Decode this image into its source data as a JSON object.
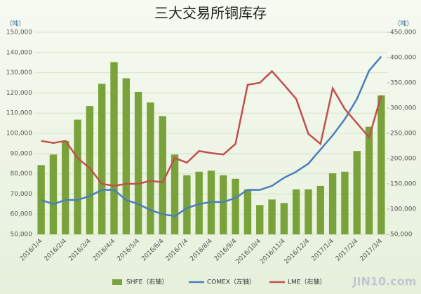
{
  "chart_data": {
    "type": "bar-line-dual",
    "title": "三大交易所铜库存",
    "y_unit": "（吨）",
    "y2_unit": "（吨）",
    "watermark": "JIN10.com",
    "categories": [
      "2016/1/4",
      null,
      "2016/2/4",
      null,
      "2016/3/4",
      null,
      "2016/4/4",
      null,
      "2016/5/4",
      null,
      "2016/6/4",
      null,
      "2016/7/4",
      null,
      "2016/8/4",
      null,
      "2016/9/4",
      null,
      "2016/10/4",
      null,
      "2016/11/4",
      null,
      "2016/12/4",
      null,
      "2017/1/4",
      null,
      "2017/2/4",
      null,
      "2017/3/4"
    ],
    "ylim": [
      50000,
      150000
    ],
    "yticks": [
      {
        "value": 50000,
        "label": "50,000"
      },
      {
        "value": 60000,
        "label": "60,000"
      },
      {
        "value": 70000,
        "label": "70,000"
      },
      {
        "value": 80000,
        "label": "80,000"
      },
      {
        "value": 90000,
        "label": "90,000"
      },
      {
        "value": 100000,
        "label": "100,000"
      },
      {
        "value": 110000,
        "label": "110,000"
      },
      {
        "value": 120000,
        "label": "120,000"
      },
      {
        "value": 130000,
        "label": "130,000"
      },
      {
        "value": 140000,
        "label": "140,000"
      },
      {
        "value": 150000,
        "label": "150,000"
      }
    ],
    "y2lim": [
      50000,
      450000
    ],
    "y2ticks": [
      {
        "value": 50000,
        "label": "50,000"
      },
      {
        "value": 100000,
        "label": "100,000"
      },
      {
        "value": 150000,
        "label": "150,000"
      },
      {
        "value": 200000,
        "label": "200,000"
      },
      {
        "value": 250000,
        "label": "250,000"
      },
      {
        "value": 300000,
        "label": "300,000"
      },
      {
        "value": 350000,
        "label": "350,000"
      },
      {
        "value": 400000,
        "label": "400,000"
      },
      {
        "value": 450000,
        "label": "450,000"
      }
    ],
    "series": [
      {
        "name": "SHFE（右轴）",
        "kind": "bar",
        "axis": "y2",
        "color": "#7aa23a",
        "values": [
          187000,
          208000,
          235000,
          277000,
          304000,
          348000,
          391000,
          359000,
          332000,
          311000,
          284000,
          208000,
          167000,
          174000,
          176000,
          167000,
          160000,
          139000,
          108000,
          119000,
          112000,
          139000,
          139000,
          146000,
          171000,
          174000,
          215000,
          263000,
          325000
        ]
      },
      {
        "name": "COMEX（左轴）",
        "kind": "line",
        "axis": "y",
        "color": "#4a7ebb",
        "values": [
          67000,
          65000,
          67000,
          67000,
          69000,
          72000,
          72000,
          67000,
          65000,
          62000,
          60000,
          59000,
          63000,
          65000,
          66000,
          66000,
          68000,
          72000,
          72000,
          74000,
          78000,
          81000,
          85000,
          92000,
          99000,
          107000,
          117000,
          131000,
          138000
        ]
      },
      {
        "name": "LME（右轴）",
        "kind": "line",
        "axis": "y2",
        "color": "#c0504d",
        "values": [
          235000,
          231000,
          235000,
          201000,
          181000,
          150000,
          146000,
          150000,
          150000,
          156000,
          153000,
          201000,
          192000,
          215000,
          211000,
          208000,
          229000,
          346000,
          350000,
          373000,
          346000,
          318000,
          249000,
          229000,
          339000,
          298000,
          270000,
          242000,
          325000
        ]
      }
    ]
  }
}
